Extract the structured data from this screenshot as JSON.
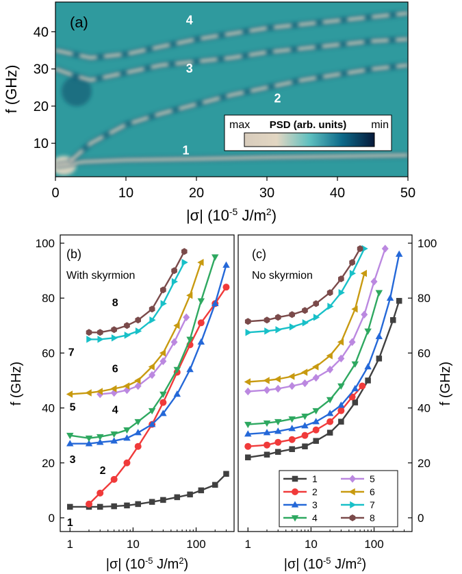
{
  "colors": {
    "bg_teal": "#2f9a9e",
    "max": "#e8d9c4",
    "mid": "#3aa9b0",
    "min": "#071a3a",
    "s1": "#404040",
    "s2": "#f03a3a",
    "s3": "#2468d8",
    "s4": "#2ea860",
    "s5": "#bb88e0",
    "s6": "#c89a10",
    "s7": "#18c0c8",
    "s8": "#7a4a4a"
  },
  "chart_data": [
    {
      "type": "heatmap",
      "panel_label": "(a)",
      "xlabel": "|σ| (10",
      "xlabel_exp": "-5",
      "xlabel_unit": " J/m",
      "xlabel_sq": "2",
      "xlabel_close": ")",
      "ylabel": "f (GHz)",
      "xlim": [
        0,
        50
      ],
      "ylim": [
        1,
        48
      ],
      "xticks": [
        "0",
        "10",
        "20",
        "30",
        "40",
        "50"
      ],
      "yticks": [
        "10",
        "20",
        "30",
        "40"
      ],
      "ytick_values": [
        10,
        20,
        30,
        40
      ],
      "colorbar": {
        "max_label": "max",
        "title": "PSD (arb. units)",
        "min_label": "min"
      },
      "mode_labels": [
        {
          "text": "4",
          "x": 19,
          "y": 42
        },
        {
          "text": "3",
          "x": 19,
          "y": 29
        },
        {
          "text": "2",
          "x": 31.5,
          "y": 21
        },
        {
          "text": "1",
          "x": 18.5,
          "y": 7
        }
      ],
      "bands": [
        {
          "mode": "1",
          "x": [
            0,
            2,
            4,
            10,
            20,
            30,
            40,
            50
          ],
          "y": [
            4,
            4.5,
            5,
            5.5,
            5.8,
            6.2,
            6.5,
            6.8
          ]
        },
        {
          "mode": "2",
          "x": [
            2,
            5,
            10,
            15,
            20,
            25,
            30,
            35,
            40,
            45,
            50
          ],
          "y": [
            5,
            10,
            15,
            18,
            20.5,
            23,
            25,
            27,
            28.5,
            30,
            31
          ]
        },
        {
          "mode": "3",
          "x": [
            0,
            3,
            5,
            10,
            15,
            20,
            25,
            30,
            35,
            40,
            45,
            50
          ],
          "y": [
            30,
            28,
            27,
            29,
            31,
            32,
            33,
            34.5,
            35.5,
            36.5,
            37.5,
            38
          ]
        },
        {
          "mode": "4",
          "x": [
            0,
            5,
            10,
            15,
            20,
            25,
            30,
            35,
            40,
            45,
            50
          ],
          "y": [
            35,
            33,
            34,
            36,
            38,
            39.5,
            41,
            42,
            43,
            44,
            45
          ]
        }
      ]
    },
    {
      "type": "line",
      "panel_label": "(b)",
      "title": "With skyrmion",
      "xscale": "log",
      "xlim": [
        0.7,
        400
      ],
      "ylim": [
        -5,
        103
      ],
      "xlabel": "|σ| (10",
      "xlabel_exp": "-5",
      "xlabel_unit": " J/m",
      "xlabel_sq": "2",
      "xlabel_close": ")",
      "ylabel": "f (GHz)",
      "xticks": [
        "1",
        "10",
        "100"
      ],
      "xtick_values": [
        1,
        10,
        100
      ],
      "yticks": [
        "0",
        "20",
        "40",
        "60",
        "80",
        "100"
      ],
      "ytick_values": [
        0,
        20,
        40,
        60,
        80,
        100
      ],
      "curve_labels": [
        {
          "text": "1",
          "x": 1.0,
          "y": -3
        },
        {
          "text": "2",
          "x": 3.3,
          "y": 16
        },
        {
          "text": "3",
          "x": 1.1,
          "y": 20
        },
        {
          "text": "4",
          "x": 5.2,
          "y": 38
        },
        {
          "text": "5",
          "x": 1.1,
          "y": 39
        },
        {
          "text": "6",
          "x": 5.2,
          "y": 53
        },
        {
          "text": "7",
          "x": 1.05,
          "y": 59
        },
        {
          "text": "8",
          "x": 5.2,
          "y": 77
        }
      ],
      "series": [
        {
          "name": "1",
          "marker": "square",
          "x": [
            1,
            2,
            3,
            5,
            8,
            12,
            20,
            30,
            50,
            80,
            120,
            200,
            300
          ],
          "y": [
            4,
            4,
            4,
            4.2,
            4.5,
            5,
            5.8,
            6.5,
            7.5,
            8.5,
            10,
            12,
            16
          ]
        },
        {
          "name": "2",
          "marker": "circle",
          "x": [
            2,
            3,
            5,
            8,
            12,
            20,
            30,
            50,
            80,
            120,
            200,
            300
          ],
          "y": [
            5,
            9,
            14,
            20,
            26,
            34,
            42,
            53,
            63,
            71,
            78,
            84
          ]
        },
        {
          "name": "3",
          "marker": "triangle-up",
          "x": [
            1,
            2,
            3,
            5,
            8,
            12,
            20,
            30,
            50,
            80,
            120,
            200,
            300
          ],
          "y": [
            27,
            27,
            27.5,
            28,
            29,
            31,
            34,
            38,
            45,
            54,
            64,
            78,
            92
          ]
        },
        {
          "name": "4",
          "marker": "triangle-down",
          "x": [
            1,
            2,
            3,
            5,
            8,
            12,
            20,
            30,
            50,
            80,
            120,
            200
          ],
          "y": [
            30,
            29,
            29.5,
            30.5,
            32,
            35,
            39,
            45,
            54,
            65,
            79,
            95
          ]
        },
        {
          "name": "5",
          "marker": "diamond",
          "x": [
            3,
            5,
            8,
            12,
            20,
            30,
            45,
            70
          ],
          "y": [
            45,
            45.5,
            46.5,
            48,
            52,
            57,
            64,
            73
          ]
        },
        {
          "name": "6",
          "marker": "triangle-left",
          "x": [
            1,
            2,
            3,
            5,
            8,
            12,
            20,
            30,
            50,
            80,
            120
          ],
          "y": [
            45,
            45.5,
            46,
            47,
            48,
            50,
            55,
            60,
            70,
            81,
            93
          ]
        },
        {
          "name": "7",
          "marker": "triangle-right",
          "x": [
            2,
            3,
            5,
            8,
            12,
            20,
            30,
            45,
            65
          ],
          "y": [
            65,
            65,
            65.5,
            66.5,
            68,
            72,
            78,
            86,
            93
          ]
        },
        {
          "name": "8",
          "marker": "hexagon",
          "x": [
            2,
            3,
            5,
            8,
            12,
            20,
            30,
            45,
            65
          ],
          "y": [
            67.5,
            67.5,
            68.5,
            70,
            72,
            76,
            83,
            90,
            97
          ]
        }
      ]
    },
    {
      "type": "line",
      "panel_label": "(c)",
      "title": "No skyrmion",
      "xscale": "log",
      "xlim": [
        0.7,
        400
      ],
      "ylim": [
        -5,
        103
      ],
      "xlabel": "|σ| (10",
      "xlabel_exp": "-5",
      "xlabel_unit": " J/m",
      "xlabel_sq": "2",
      "xlabel_close": ")",
      "ylabel": "f (GHz)",
      "xticks": [
        "1",
        "10",
        "100"
      ],
      "xtick_values": [
        1,
        10,
        100
      ],
      "yticks": [
        "0",
        "20",
        "40",
        "60",
        "80",
        "100"
      ],
      "ytick_values": [
        0,
        20,
        40,
        60,
        80,
        100
      ],
      "legend_placement": "bottom-right",
      "series": [
        {
          "name": "1",
          "marker": "square",
          "x": [
            1,
            2,
            3,
            5,
            8,
            12,
            20,
            30,
            50,
            80,
            120,
            200,
            250
          ],
          "y": [
            22,
            23,
            24,
            25,
            26,
            28,
            31,
            35,
            42,
            50,
            58,
            72,
            79
          ]
        },
        {
          "name": "2",
          "marker": "circle",
          "x": [
            1,
            2,
            3,
            5,
            8,
            12,
            20,
            30,
            45,
            65
          ],
          "y": [
            26,
            26.5,
            27.5,
            28.5,
            30,
            32,
            35,
            39,
            44,
            48
          ]
        },
        {
          "name": "3",
          "marker": "triangle-up",
          "x": [
            1,
            2,
            3,
            5,
            8,
            12,
            20,
            30,
            50,
            80,
            120,
            180,
            250
          ],
          "y": [
            30.5,
            31,
            31.5,
            32.5,
            33.5,
            35,
            38,
            41,
            47,
            55,
            66,
            80,
            96
          ]
        },
        {
          "name": "4",
          "marker": "triangle-down",
          "x": [
            1,
            2,
            3,
            5,
            8,
            12,
            20,
            30,
            50,
            80,
            120
          ],
          "y": [
            34,
            34.5,
            35,
            36,
            37,
            39,
            43,
            48,
            56,
            68,
            82
          ]
        },
        {
          "name": "5",
          "marker": "diamond",
          "x": [
            1,
            2,
            3,
            5,
            8,
            12,
            20,
            30,
            45,
            70,
            100,
            150
          ],
          "y": [
            46,
            46.5,
            47,
            48,
            49,
            51,
            54,
            58,
            64,
            74,
            86,
            98
          ]
        },
        {
          "name": "6",
          "marker": "triangle-left",
          "x": [
            1,
            2,
            3,
            5,
            8,
            12,
            20,
            30,
            50,
            70
          ],
          "y": [
            49.5,
            50,
            50.5,
            51.5,
            53,
            55,
            59,
            64,
            76,
            89
          ]
        },
        {
          "name": "7",
          "marker": "triangle-right",
          "x": [
            1,
            2,
            3,
            5,
            8,
            12,
            20,
            30,
            45,
            70
          ],
          "y": [
            67.5,
            68,
            68.5,
            69.5,
            71,
            73,
            77,
            82,
            89,
            98
          ]
        },
        {
          "name": "8",
          "marker": "hexagon",
          "x": [
            1,
            2,
            3,
            5,
            8,
            12,
            20,
            30,
            45,
            60
          ],
          "y": [
            71.5,
            72,
            73,
            74,
            75.5,
            78,
            82,
            87,
            93,
            98
          ]
        }
      ]
    }
  ]
}
